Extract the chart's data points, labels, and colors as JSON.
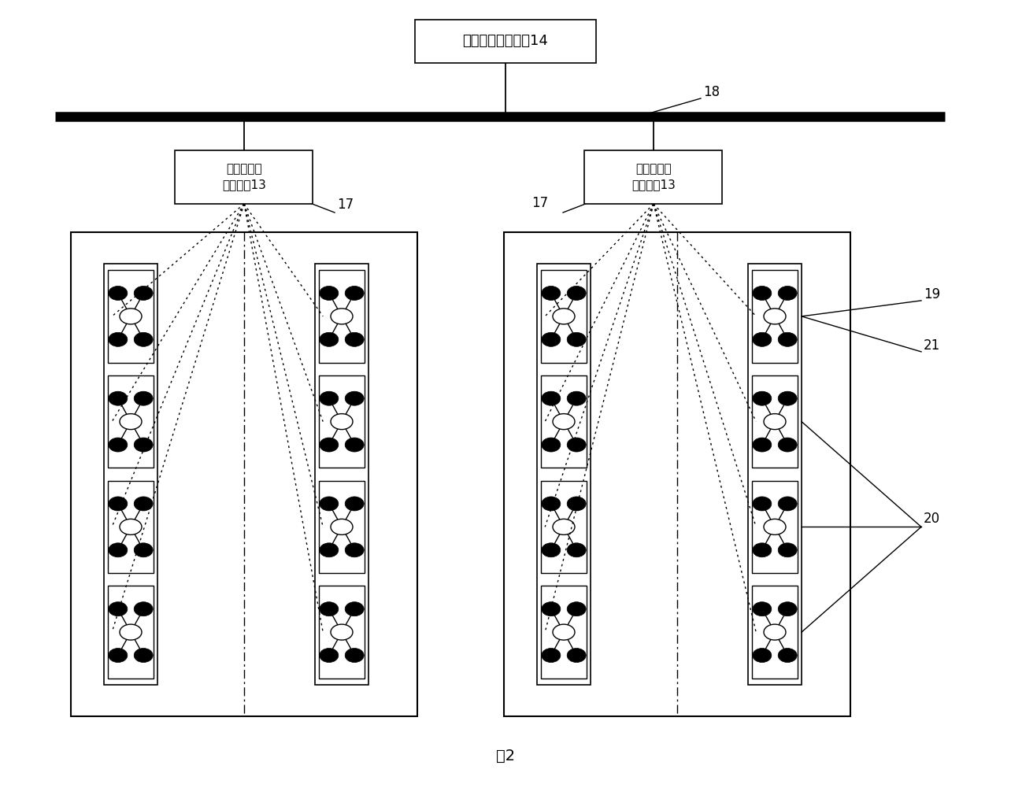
{
  "title": "图2",
  "bg_color": "#ffffff",
  "top_box_text": "全国列车检修系统14",
  "depot_box_text": "车辆段信息\n收集系统13",
  "label_18": "18",
  "label_17_left": "17",
  "label_17_right": "17",
  "label_19": "19",
  "label_21": "21",
  "label_20": "20"
}
